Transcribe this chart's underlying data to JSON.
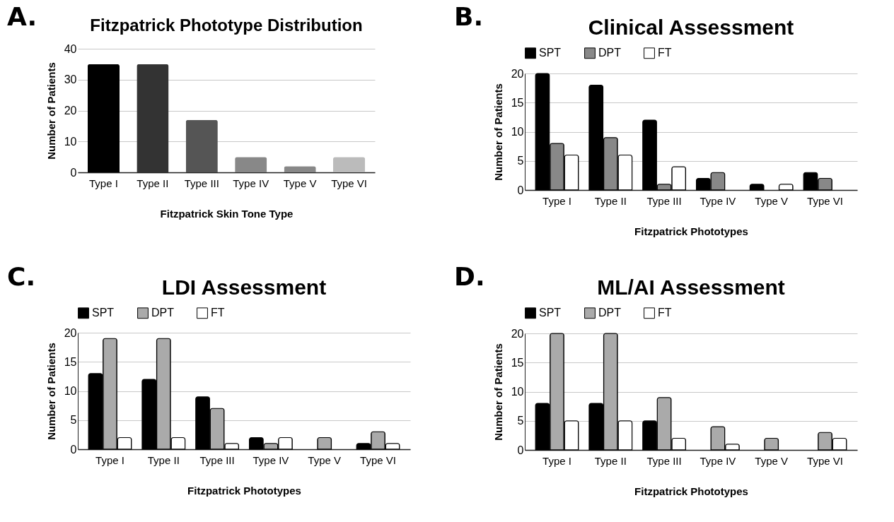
{
  "chart_data": [
    {
      "type": "bar",
      "title": "Fitzpatrick Phototype Distribution",
      "annotations": [
        "A."
      ],
      "xlabel": "Fitzpatrick Skin Tone Type",
      "ylabel": "Number of Patients",
      "categories": [
        "Type I",
        "Type II",
        "Type III",
        "Type IV",
        "Type V",
        "Type VI"
      ],
      "values": [
        35,
        35,
        17,
        5,
        2,
        5
      ],
      "colors": [
        "#000000",
        "#333333",
        "#555555",
        "#888888",
        "#888888",
        "#bbbbbb"
      ],
      "ylim": [
        0,
        40
      ],
      "yticks": [
        0,
        10,
        20,
        30,
        40
      ],
      "grid": "y",
      "legend": false
    },
    {
      "type": "bar",
      "title": "Clinical Assessment",
      "annotations": [
        "B."
      ],
      "xlabel": "Fitzpatrick Phototypes",
      "ylabel": "Number of Patients",
      "categories": [
        "Type I",
        "Type II",
        "Type III",
        "Type IV",
        "Type V",
        "Type VI"
      ],
      "series": [
        {
          "name": "SPT",
          "color": "#000000",
          "values": [
            20,
            18,
            12,
            2,
            1,
            3
          ]
        },
        {
          "name": "DPT",
          "color": "#888888",
          "values": [
            8,
            9,
            1,
            3,
            0,
            2
          ]
        },
        {
          "name": "FT",
          "color": "#ffffff",
          "values": [
            6,
            6,
            4,
            0,
            1,
            0
          ]
        }
      ],
      "ylim": [
        0,
        20
      ],
      "yticks": [
        0,
        5,
        10,
        15,
        20
      ],
      "grid": "y",
      "legend": "top"
    },
    {
      "type": "bar",
      "title": "LDI Assessment",
      "annotations": [
        "C."
      ],
      "xlabel": "Fitzpatrick Phototypes",
      "ylabel": "Number of Patients",
      "categories": [
        "Type I",
        "Type II",
        "Type III",
        "Type IV",
        "Type V",
        "Type VI"
      ],
      "series": [
        {
          "name": "SPT",
          "color": "#000000",
          "values": [
            13,
            12,
            9,
            2,
            0,
            1
          ]
        },
        {
          "name": "DPT",
          "color": "#aaaaaa",
          "values": [
            19,
            19,
            7,
            1,
            2,
            3
          ]
        },
        {
          "name": "FT",
          "color": "#ffffff",
          "values": [
            2,
            2,
            1,
            2,
            0,
            1
          ]
        }
      ],
      "ylim": [
        0,
        20
      ],
      "yticks": [
        0,
        5,
        10,
        15,
        20
      ],
      "grid": "y",
      "legend": "top"
    },
    {
      "type": "bar",
      "title": "ML/AI Assessment",
      "annotations": [
        "D."
      ],
      "xlabel": "Fitzpatrick Phototypes",
      "ylabel": "Number of Patients",
      "categories": [
        "Type I",
        "Type II",
        "Type III",
        "Type IV",
        "Type V",
        "Type VI"
      ],
      "series": [
        {
          "name": "SPT",
          "color": "#000000",
          "values": [
            8,
            8,
            5,
            null,
            null,
            null
          ]
        },
        {
          "name": "DPT",
          "color": "#aaaaaa",
          "values": [
            20,
            20,
            9,
            4,
            2,
            3
          ]
        },
        {
          "name": "FT",
          "color": "#ffffff",
          "values": [
            5,
            5,
            2,
            1,
            0,
            2
          ]
        }
      ],
      "ylim": [
        0,
        20
      ],
      "yticks": [
        0,
        5,
        10,
        15,
        20
      ],
      "grid": "y",
      "legend": "top"
    }
  ]
}
